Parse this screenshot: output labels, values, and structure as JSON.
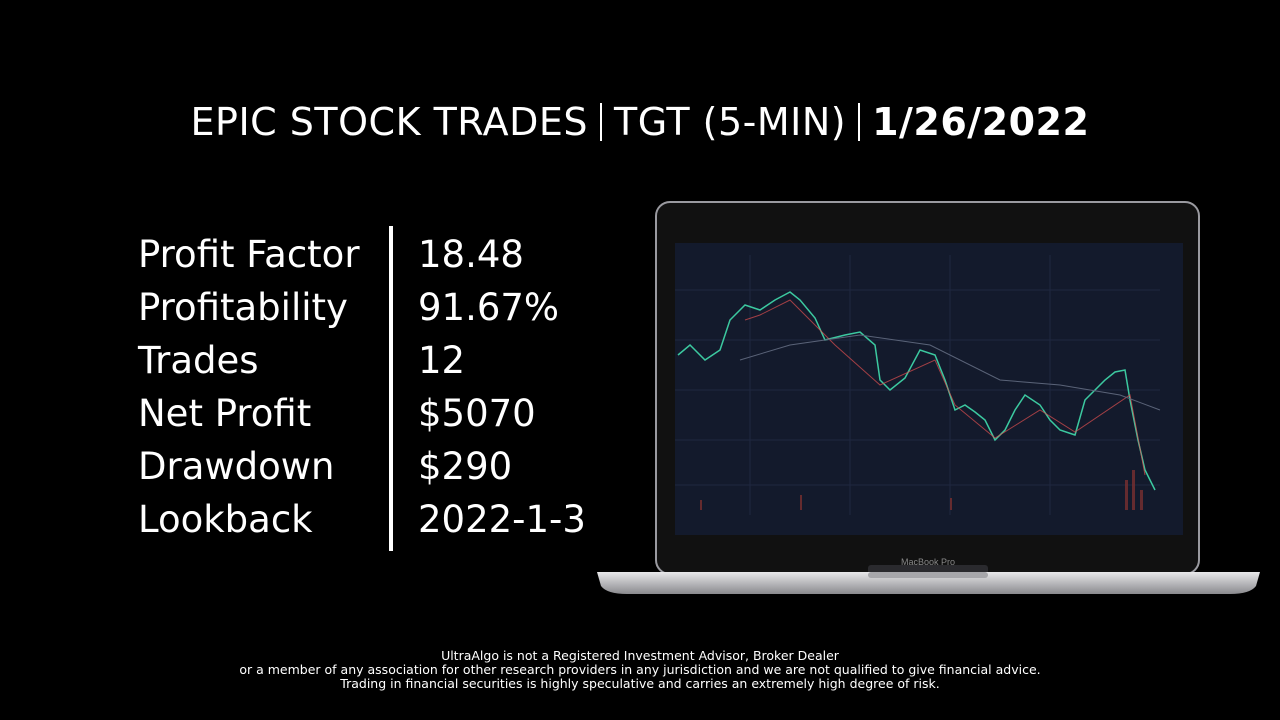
{
  "header": {
    "title": "EPIC STOCK TRADES",
    "ticker": "TGT (5-MIN)",
    "date": "1/26/2022"
  },
  "stats": {
    "rows": [
      [
        "Profit Factor",
        "18.48"
      ],
      [
        "Profitability",
        "91.67%"
      ],
      [
        "Trades",
        "12"
      ],
      [
        "Net Profit",
        "$5070"
      ],
      [
        "Drawdown",
        "$290"
      ],
      [
        "Lookback",
        "2022-1-3"
      ]
    ]
  },
  "laptop": {
    "label": "MacBook Pro"
  },
  "disclaimer": {
    "lines": [
      "UltraAlgo is not a Registered Investment Advisor, Broker Dealer",
      "or a member of any association for other research providers in any jurisdiction and we are not qualified to give financial advice.",
      "Trading in financial securities is highly speculative and carries an extremely high degree of risk."
    ]
  }
}
